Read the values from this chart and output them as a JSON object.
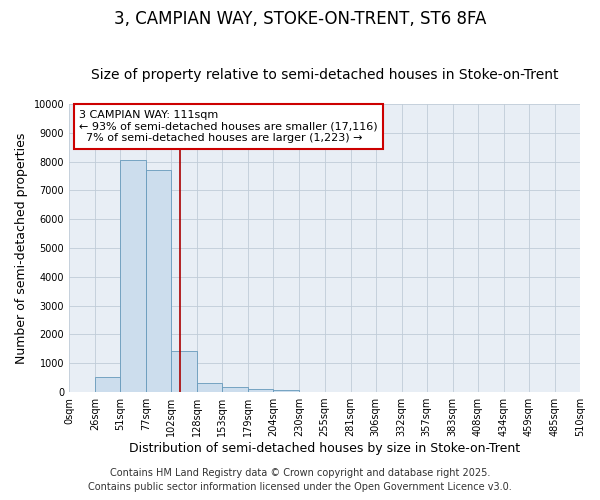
{
  "title": "3, CAMPIAN WAY, STOKE-ON-TRENT, ST6 8FA",
  "subtitle": "Size of property relative to semi-detached houses in Stoke-on-Trent",
  "xlabel": "Distribution of semi-detached houses by size in Stoke-on-Trent",
  "ylabel": "Number of semi-detached properties",
  "bin_edges": [
    0,
    26,
    51,
    77,
    102,
    128,
    153,
    179,
    204,
    230,
    255,
    281,
    306,
    332,
    357,
    383,
    408,
    434,
    459,
    485,
    510
  ],
  "bar_heights": [
    0,
    540,
    8050,
    7700,
    1420,
    330,
    165,
    95,
    55,
    0,
    0,
    0,
    0,
    0,
    0,
    0,
    0,
    0,
    0,
    0
  ],
  "bar_color": "#ccdded",
  "bar_edge_color": "#6699bb",
  "property_value": 111,
  "red_line_color": "#aa0000",
  "annotation_line1": "3 CAMPIAN WAY: 111sqm",
  "annotation_line2": "← 93% of semi-detached houses are smaller (17,116)",
  "annotation_line3": "  7% of semi-detached houses are larger (1,223) →",
  "annotation_box_color": "#ffffff",
  "annotation_box_edge_color": "#cc0000",
  "ylim": [
    0,
    10000
  ],
  "yticks": [
    0,
    1000,
    2000,
    3000,
    4000,
    5000,
    6000,
    7000,
    8000,
    9000,
    10000
  ],
  "footer1": "Contains HM Land Registry data © Crown copyright and database right 2025.",
  "footer2": "Contains public sector information licensed under the Open Government Licence v3.0.",
  "background_color": "#ffffff",
  "plot_background_color": "#e8eef5",
  "grid_color": "#c0ccd8",
  "title_fontsize": 12,
  "subtitle_fontsize": 10,
  "tick_fontsize": 7,
  "label_fontsize": 9,
  "footer_fontsize": 7
}
